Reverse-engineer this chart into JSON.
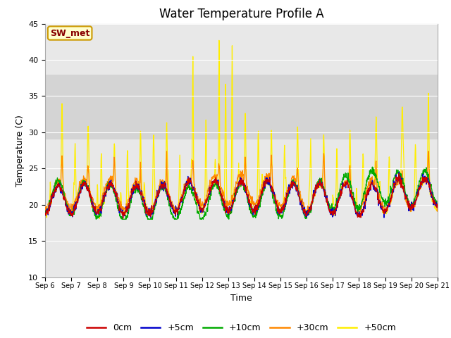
{
  "title": "Water Temperature Profile A",
  "xlabel": "Time",
  "ylabel": "Temperature (C)",
  "ylim": [
    10,
    45
  ],
  "n_days": 15,
  "xtick_labels": [
    "Sep 6",
    "Sep 7",
    "Sep 8",
    "Sep 9",
    "Sep 10",
    "Sep 11",
    "Sep 12",
    "Sep 13",
    "Sep 14",
    "Sep 15",
    "Sep 16",
    "Sep 17",
    "Sep 18",
    "Sep 19",
    "Sep 20",
    "Sep 21"
  ],
  "legend_entries": [
    "0cm",
    "+5cm",
    "+10cm",
    "+30cm",
    "+50cm"
  ],
  "line_colors": [
    "#cc0000",
    "#0000cc",
    "#00aa00",
    "#ff8800",
    "#ffee00"
  ],
  "annotation_text": "SW_met",
  "annotation_bg": "#ffffcc",
  "annotation_border": "#cc9900",
  "annotation_text_color": "#880000",
  "shaded_band_light": [
    29,
    38
  ],
  "yticks": [
    10,
    15,
    20,
    25,
    30,
    35,
    40,
    45
  ],
  "background_color": "#e8e8e8",
  "grid_color": "#ffffff",
  "title_fontsize": 12,
  "axis_fontsize": 9,
  "tick_fontsize": 8,
  "legend_fontsize": 9
}
